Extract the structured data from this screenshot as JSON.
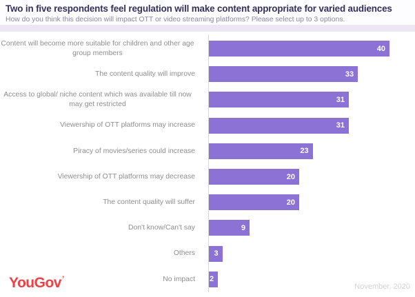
{
  "header": {
    "title": "Two in five respondents feel regulation will make content appropriate for varied audiences",
    "subtitle": "How do you think this decision will impact OTT or video streaming platforms? Please select up to 3 options."
  },
  "chart_data": {
    "type": "bar",
    "orientation": "horizontal",
    "title": "Two in five respondents feel regulation will make content appropriate for varied audiences",
    "subtitle": "How do you think this decision will impact OTT or video streaming platforms? Please select up to 3 options.",
    "categories": [
      "Content will become more suitable for children and other age group members",
      "The content quality will improve",
      "Access to global/ niche content which was available till now may get restricted",
      "Viewership of OTT platforms may increase",
      "Piracy of movies/series could increase",
      "Viewership of OTT platforms may decrease",
      "The content quality will suffer",
      "Don't know/Can't say",
      "Others",
      "No impact"
    ],
    "values": [
      40,
      33,
      31,
      31,
      23,
      20,
      20,
      9,
      3,
      2
    ],
    "xlabel": "",
    "ylabel": "",
    "xlim": [
      0,
      40
    ],
    "grid": false,
    "legend": "none",
    "data_labels": "inside-end",
    "bar_color": "#8c72d4",
    "value_label_color": "#ffffff"
  },
  "footer": {
    "logo_text": "YouGov",
    "logo_tick": "’",
    "date_label": "November, 2020"
  },
  "colors": {
    "title": "#33305c",
    "subtitle": "#8b89a0",
    "category_label": "#8e8e8e",
    "header_band": "#ebe8f3",
    "axis_line": "#d8d8d8",
    "bar": "#8c72d4",
    "logo": "#ee4146",
    "date": "#d3d3d3"
  }
}
